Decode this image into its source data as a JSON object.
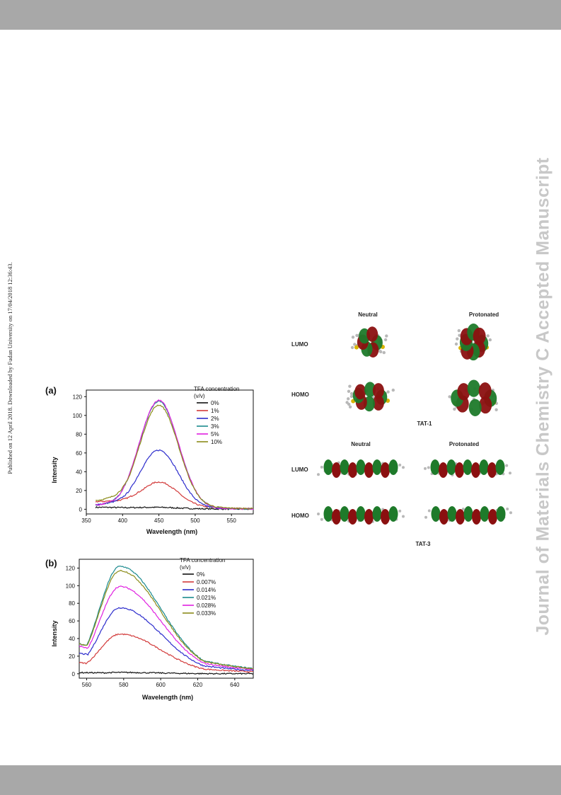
{
  "page": {
    "side_note": "Published on 12 April 2018. Downloaded by Fudan University on 17/04/2018 12:36:43.",
    "watermark": "Journal of Materials Chemistry C Accepted Manuscript"
  },
  "chart_data": [
    {
      "panel": "(a)",
      "type": "line",
      "xlabel": "Wavelength (nm)",
      "ylabel": "Intensity",
      "xlim": [
        350,
        580
      ],
      "ylim": [
        -5,
        127
      ],
      "xticks": [
        350,
        400,
        450,
        500,
        550
      ],
      "yticks": [
        0,
        20,
        40,
        60,
        80,
        100,
        120
      ],
      "legend_title": "TFA concentration\n(v/v)",
      "legend_title_lines": [
        "TFA concentration",
        "(v/v)"
      ],
      "legend_position": "top-right",
      "peak_x": 450,
      "series": [
        {
          "name": "0%",
          "color": "#111111",
          "peak": 1.5,
          "base": 2
        },
        {
          "name": "1%",
          "color": "#d23a3a",
          "peak": 29,
          "base": 8
        },
        {
          "name": "2%",
          "color": "#2c2ccc",
          "peak": 63,
          "base": 5
        },
        {
          "name": "3%",
          "color": "#1b8a8e",
          "peak": 115,
          "base": 4
        },
        {
          "name": "5%",
          "color": "#e020e0",
          "peak": 116,
          "base": 4
        },
        {
          "name": "10%",
          "color": "#8c8c1a",
          "peak": 111,
          "base": 9
        }
      ]
    },
    {
      "panel": "(b)",
      "type": "line",
      "xlabel": "Wavelength (nm)",
      "ylabel": "Intensity",
      "xlim": [
        556,
        650
      ],
      "ylim": [
        -5,
        130
      ],
      "xticks": [
        560,
        580,
        600,
        620,
        640
      ],
      "yticks": [
        0,
        20,
        40,
        60,
        80,
        100,
        120
      ],
      "legend_title_lines": [
        "TFA concentration",
        "(v/v)"
      ],
      "legend_position": "top-right",
      "peak_x": 578,
      "series": [
        {
          "name": "0%",
          "color": "#111111",
          "peak": 1.5,
          "start": 1.5
        },
        {
          "name": "0.007%",
          "color": "#d23a3a",
          "peak": 45,
          "start": 14
        },
        {
          "name": "0.014%",
          "color": "#2c2ccc",
          "peak": 75,
          "start": 26
        },
        {
          "name": "0.021%",
          "color": "#1b8a8e",
          "peak": 122,
          "start": 38
        },
        {
          "name": "0.028%",
          "color": "#e020e0",
          "peak": 99,
          "start": 35
        },
        {
          "name": "0.033%",
          "color": "#8c8c1a",
          "peak": 117,
          "start": 38
        }
      ]
    }
  ],
  "orbitals": {
    "tat1": {
      "label": "TAT-1",
      "col_neutral": "Neutral",
      "col_protonated": "Protonated",
      "row_lumo": "LUMO",
      "row_homo": "HOMO"
    },
    "tat3": {
      "label": "TAT-3",
      "col_neutral": "Neutral",
      "col_protonated": "Protonated",
      "row_lumo": "LUMO",
      "row_homo": "HOMO"
    },
    "colors": {
      "positive": "#1e7a2a",
      "negative": "#8b1010",
      "atom": "#b8b8b8",
      "sulfur": "#d8b400"
    }
  }
}
